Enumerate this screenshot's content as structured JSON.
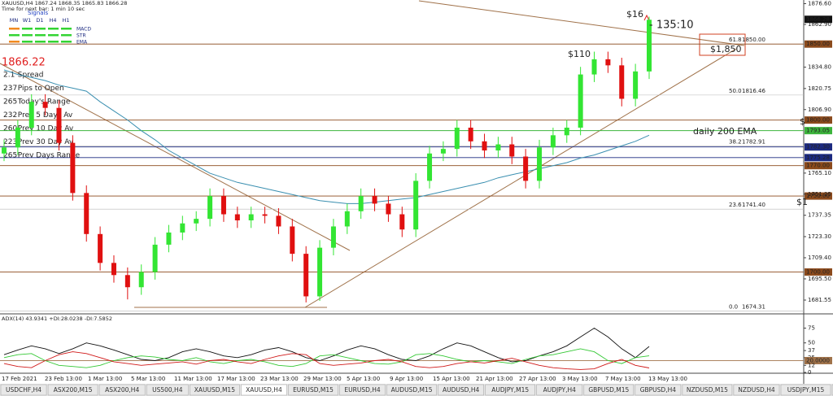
{
  "header": {
    "symbol_line": "XAUUSD,H4  1867.24 1868.35 1865.83 1866.28",
    "timer": "Time for next bar: 1 min 10 sec"
  },
  "signals": {
    "title": "Signals",
    "columns": [
      "MN",
      "W1",
      "D1",
      "H4",
      "H1"
    ],
    "rows": [
      "MACD",
      "STR",
      "EMA"
    ]
  },
  "price_big": "1866.22",
  "info": [
    {
      "value": "2.1",
      "label": "Spread",
      "color": "#e08a00"
    },
    {
      "value": "237",
      "label": "Pips to Open",
      "color": "#22b422"
    },
    {
      "value": "265",
      "label": "Today's Range",
      "color": "#d02020"
    },
    {
      "value": "232",
      "label": "Prev 5 Days Av",
      "color": "#e05a00"
    },
    {
      "value": "260",
      "label": "Prev 10 Day Av",
      "color": "#d02020"
    },
    {
      "value": "223",
      "label": "Prev 30 Day Av",
      "color": "#22b422"
    },
    {
      "value": "265",
      "label": "Prev Days Range",
      "color": "#e05a00"
    }
  ],
  "chart_data": [
    {
      "type": "candlestick",
      "ylim": [
        1673,
        1879
      ],
      "grid": false,
      "yticks": [
        {
          "value": 1876.6,
          "label": "1876.60"
        },
        {
          "value": 1862.9,
          "label": "1862.90"
        },
        {
          "value": 1834.8,
          "label": "1834.80"
        },
        1820.75,
        {
          "value": 1806.9,
          "label": "1806.90"
        },
        {
          "value": 1765.1,
          "label": "1765.10"
        },
        1751.25,
        1737.35,
        {
          "value": 1723.3,
          "label": "1723.30"
        },
        {
          "value": 1709.4,
          "label": "1709.40"
        },
        {
          "value": 1695.5,
          "label": "1695.50"
        },
        1681.55
      ],
      "current_price": {
        "value": 1866.28,
        "label": "1866.28"
      },
      "levels": [
        {
          "value": 1850,
          "label": "1850.00",
          "color": "#8b4a1c"
        },
        {
          "value": 1800,
          "label": "1800.00",
          "color": "#8b4a1c"
        },
        {
          "value": 1793.05,
          "label": "1793.05",
          "color": "#3cb43c"
        },
        {
          "value": 1782.3,
          "label": "1782.30",
          "color": "#1c2a80"
        },
        {
          "value": 1775.28,
          "label": "1775.28",
          "color": "#1c2a80"
        },
        {
          "value": 1770,
          "label": "1770.00",
          "color": "#8b4a1c"
        },
        {
          "value": 1750,
          "label": "1750.00",
          "color": "#8b4a1c"
        },
        {
          "value": 1700,
          "label": "1700.00",
          "color": "#8b4a1c"
        }
      ],
      "fibonacci": [
        {
          "ratio": "61.8",
          "value": 1850,
          "label": "1850.00"
        },
        {
          "ratio": "50.0",
          "value": 1816.46,
          "label": "1816.46"
        },
        {
          "ratio": "38.2",
          "value": 1782.91,
          "label": "1782.91"
        },
        {
          "ratio": "23.6",
          "value": 1741.4,
          "label": "1741.40"
        },
        {
          "ratio": "0.0",
          "value": 1674.31,
          "label": "1674.31"
        }
      ],
      "up_color": "#33e533",
      "down_color": "#e01010",
      "ema_color": "#3a8fb0",
      "open": [
        1778,
        1782,
        1795,
        1812,
        1808,
        1785,
        1752,
        1725,
        1706,
        1698,
        1690,
        1700,
        1718,
        1726,
        1732,
        1735,
        1750,
        1738,
        1734,
        1738,
        1737,
        1730,
        1712,
        1684,
        1716,
        1730,
        1740,
        1750,
        1745,
        1738,
        1728,
        1760,
        1778,
        1781,
        1795,
        1786,
        1780,
        1784,
        1776,
        1760,
        1782,
        1790,
        1795,
        1830,
        1840,
        1836,
        1814,
        1832
      ],
      "high": [
        1787,
        1800,
        1817,
        1817,
        1813,
        1790,
        1757,
        1730,
        1711,
        1703,
        1705,
        1723,
        1731,
        1737,
        1740,
        1755,
        1755,
        1743,
        1743,
        1743,
        1742,
        1735,
        1717,
        1721,
        1735,
        1745,
        1755,
        1755,
        1750,
        1743,
        1765,
        1783,
        1786,
        1800,
        1800,
        1791,
        1789,
        1789,
        1781,
        1787,
        1795,
        1800,
        1835,
        1845,
        1845,
        1841,
        1837,
        1868
      ],
      "low": [
        1773,
        1777,
        1790,
        1803,
        1780,
        1747,
        1720,
        1701,
        1693,
        1682,
        1685,
        1695,
        1713,
        1721,
        1727,
        1730,
        1733,
        1729,
        1729,
        1732,
        1725,
        1707,
        1680,
        1681,
        1711,
        1725,
        1735,
        1740,
        1733,
        1723,
        1723,
        1755,
        1773,
        1776,
        1781,
        1775,
        1775,
        1771,
        1755,
        1755,
        1777,
        1785,
        1790,
        1825,
        1831,
        1809,
        1809,
        1827
      ],
      "close": [
        1782,
        1795,
        1812,
        1808,
        1785,
        1752,
        1725,
        1706,
        1698,
        1690,
        1700,
        1718,
        1726,
        1732,
        1735,
        1750,
        1738,
        1734,
        1738,
        1737,
        1730,
        1712,
        1684,
        1716,
        1730,
        1740,
        1750,
        1745,
        1738,
        1728,
        1760,
        1778,
        1781,
        1795,
        1786,
        1780,
        1784,
        1776,
        1760,
        1782,
        1790,
        1795,
        1830,
        1840,
        1836,
        1814,
        1832,
        1866
      ],
      "ema": [
        1833,
        1830,
        1828,
        1826,
        1823,
        1821,
        1819,
        1812,
        1806,
        1800,
        1793,
        1787,
        1780,
        1775,
        1770,
        1765,
        1762,
        1759,
        1757,
        1755,
        1753,
        1751,
        1749,
        1747,
        1746,
        1745,
        1745,
        1746,
        1747,
        1748,
        1749,
        1751,
        1753,
        1755,
        1757,
        1759,
        1762,
        1764,
        1766,
        1768,
        1770,
        1772,
        1775,
        1777,
        1780,
        1783,
        1786,
        1790
      ],
      "time_labels": [
        "17 Feb 2021",
        "23 Feb 13:00",
        "1 Mar 13:00",
        "5 Mar 13:00",
        "11 Mar 13:00",
        "17 Mar 13:00",
        "23 Mar 13:00",
        "29 Mar 13:00",
        "5 Apr 13:00",
        "9 Apr 13:00",
        "15 Apr 13:00",
        "21 Apr 13:00",
        "27 Apr 13:00",
        "3 May 13:00",
        "7 May 13:00",
        "13 May 13:00"
      ],
      "annotations": [
        {
          "text": "$16",
          "color": "#a0522d"
        },
        {
          "text": "- 135:10",
          "color": "#e02020"
        },
        {
          "text": "$110",
          "color": "#a0522d"
        },
        {
          "text": "$1,850",
          "color": "#a0522d"
        },
        {
          "text": "daily 200 EMA",
          "color": "#a0522d"
        },
        {
          "text": "$",
          "color": "#a0522d"
        },
        {
          "text": "$1",
          "color": "#a0522d"
        }
      ]
    },
    {
      "type": "line",
      "title": "ADX(14) 43.9341 +DI:28.0238 -DI:7.5852",
      "ylim": [
        0,
        95
      ],
      "yticks": [
        75,
        50,
        37,
        25,
        {
          "value": 20,
          "label": "20.0000"
        },
        12,
        0
      ],
      "series": [
        {
          "color": "#111111",
          "values": [
            30,
            38,
            45,
            40,
            32,
            40,
            50,
            45,
            38,
            30,
            22,
            20,
            25,
            35,
            40,
            35,
            28,
            25,
            30,
            38,
            42,
            35,
            25,
            20,
            28,
            38,
            45,
            40,
            30,
            22,
            20,
            28,
            40,
            50,
            45,
            35,
            25,
            18,
            20,
            28,
            35,
            45,
            60,
            75,
            60,
            40,
            25,
            43.9341
          ]
        },
        {
          "color": "#33c833",
          "values": [
            25,
            30,
            32,
            20,
            12,
            10,
            8,
            12,
            20,
            25,
            28,
            26,
            22,
            20,
            25,
            18,
            15,
            20,
            22,
            18,
            12,
            10,
            15,
            28,
            30,
            25,
            20,
            15,
            14,
            18,
            30,
            32,
            28,
            22,
            18,
            20,
            18,
            15,
            22,
            28,
            30,
            35,
            40,
            35,
            20,
            15,
            25,
            28.0238
          ]
        },
        {
          "color": "#d01818",
          "values": [
            15,
            10,
            8,
            20,
            30,
            35,
            32,
            25,
            18,
            15,
            12,
            14,
            16,
            18,
            14,
            20,
            22,
            18,
            15,
            22,
            28,
            32,
            30,
            15,
            12,
            14,
            16,
            20,
            22,
            18,
            10,
            8,
            10,
            15,
            18,
            16,
            20,
            24,
            18,
            12,
            8,
            6,
            5,
            6,
            15,
            22,
            12,
            7.5852
          ]
        }
      ]
    }
  ],
  "tabs": {
    "items": [
      "USDCHF,H4",
      "ASX200,M15",
      "ASX200,H4",
      "US500,H4",
      "XAUUSD,M15",
      "XAUUSD,H4",
      "EURUSD,M15",
      "EURUSD,H4",
      "AUDUSD,M15",
      "AUDUSD,H4",
      "AUDJPY,M15",
      "AUDJPY,H4",
      "GBPUSD,M15",
      "GBPUSD,H4",
      "NZDUSD,M15",
      "NZDUSD,H4",
      "USDJPY,M15",
      "U"
    ],
    "active": 5
  }
}
